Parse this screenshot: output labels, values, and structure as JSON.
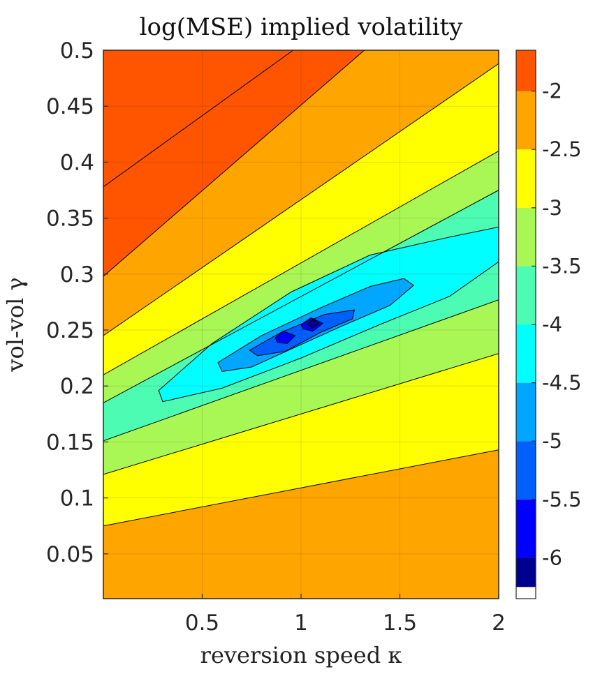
{
  "chart_data": {
    "type": "contour",
    "title": "log(MSE) implied volatility",
    "xlabel": "reversion speed κ",
    "ylabel": "vol-vol γ",
    "xlim": [
      0,
      2
    ],
    "ylim": [
      0.01,
      0.5
    ],
    "xticks": [
      0.5,
      1,
      1.5,
      2
    ],
    "xtick_labels": [
      "0.5",
      "1",
      "1.5",
      "2"
    ],
    "yticks": [
      0.05,
      0.1,
      0.15,
      0.2,
      0.25,
      0.3,
      0.35,
      0.4,
      0.45,
      0.5
    ],
    "ytick_labels": [
      "0.05",
      "0.1",
      "0.15",
      "0.2",
      "0.25",
      "0.3",
      "0.35",
      "0.4",
      "0.45",
      "0.5"
    ],
    "grid": true,
    "colorbar": {
      "range": [
        -6.35,
        -1.65
      ],
      "ticks": [
        -6,
        -5.5,
        -5,
        -4.5,
        -4,
        -3.5,
        -3,
        -2.5,
        -2
      ],
      "tick_labels": [
        "-6",
        "-5.5",
        "-5",
        "-4.5",
        "-4",
        "-3.5",
        "-3",
        "-2.5",
        "-2"
      ],
      "levels": [
        -6.25,
        -6.0,
        -5.5,
        -5.0,
        -4.5,
        -4.0,
        -3.5,
        -3.0,
        -2.5,
        -2.0,
        -1.5
      ],
      "colors": [
        "#00008f",
        "#0000ff",
        "#005fff",
        "#00a6ff",
        "#00ffff",
        "#4cfcb2",
        "#a8f755",
        "#ffff00",
        "#ffa500",
        "#ff5500"
      ]
    },
    "minimum": {
      "kappa": 1.05,
      "gamma": 0.255,
      "log_mse": -6.3
    },
    "contours": [
      {
        "level": -2.0,
        "points": [
          [
            0,
            0.378
          ],
          [
            0.96,
            0.5
          ]
        ]
      },
      {
        "level": -2.0,
        "points": [
          [
            0,
            0.298
          ],
          [
            1.32,
            0.5
          ]
        ]
      },
      {
        "level": -2.5,
        "points": [
          [
            0,
            0.245
          ],
          [
            2,
            0.488
          ]
        ]
      },
      {
        "level": -3.0,
        "points": [
          [
            0,
            0.21
          ],
          [
            2,
            0.41
          ]
        ]
      },
      {
        "level": -3.5,
        "points": [
          [
            0,
            0.185
          ],
          [
            2,
            0.375
          ]
        ]
      },
      {
        "level": -3.5,
        "points": [
          [
            0,
            0.151
          ],
          [
            2,
            0.277
          ]
        ]
      },
      {
        "level": -3.0,
        "points": [
          [
            0,
            0.121
          ],
          [
            2,
            0.229
          ]
        ]
      },
      {
        "level": -2.5,
        "points": [
          [
            0,
            0.075
          ],
          [
            2,
            0.143
          ]
        ]
      },
      {
        "level": -4.0,
        "points": [
          [
            0.28,
            0.196
          ],
          [
            0.55,
            0.238
          ],
          [
            0.95,
            0.284
          ],
          [
            1.35,
            0.317
          ],
          [
            1.75,
            0.333
          ],
          [
            2,
            0.342
          ],
          [
            2,
            0.311
          ],
          [
            1.75,
            0.28
          ],
          [
            1.4,
            0.255
          ],
          [
            1.0,
            0.225
          ],
          [
            0.6,
            0.198
          ],
          [
            0.3,
            0.186
          ]
        ]
      },
      {
        "level": -4.5,
        "points": [
          [
            0.58,
            0.221
          ],
          [
            0.8,
            0.245
          ],
          [
            1.1,
            0.27
          ],
          [
            1.35,
            0.289
          ],
          [
            1.52,
            0.296
          ],
          [
            1.57,
            0.29
          ],
          [
            1.45,
            0.272
          ],
          [
            1.2,
            0.253
          ],
          [
            0.95,
            0.233
          ],
          [
            0.75,
            0.217
          ],
          [
            0.6,
            0.213
          ]
        ]
      },
      {
        "level": -5.0,
        "points": [
          [
            0.74,
            0.232
          ],
          [
            0.9,
            0.248
          ],
          [
            1.12,
            0.264
          ],
          [
            1.27,
            0.268
          ],
          [
            1.26,
            0.26
          ],
          [
            1.1,
            0.248
          ],
          [
            0.92,
            0.231
          ],
          [
            0.78,
            0.227
          ]
        ]
      },
      {
        "level": -5.5,
        "points": [
          [
            0.87,
            0.243
          ],
          [
            0.91,
            0.249
          ],
          [
            0.97,
            0.245
          ],
          [
            0.93,
            0.238
          ],
          [
            0.88,
            0.239
          ]
        ]
      },
      {
        "level": -5.5,
        "points": [
          [
            1.0,
            0.255
          ],
          [
            1.05,
            0.261
          ],
          [
            1.11,
            0.256
          ],
          [
            1.06,
            0.249
          ],
          [
            1.01,
            0.251
          ]
        ]
      },
      {
        "level": -6.0,
        "points": [
          [
            1.03,
            0.255
          ],
          [
            1.06,
            0.259
          ],
          [
            1.09,
            0.256
          ],
          [
            1.06,
            0.252
          ]
        ]
      }
    ]
  }
}
